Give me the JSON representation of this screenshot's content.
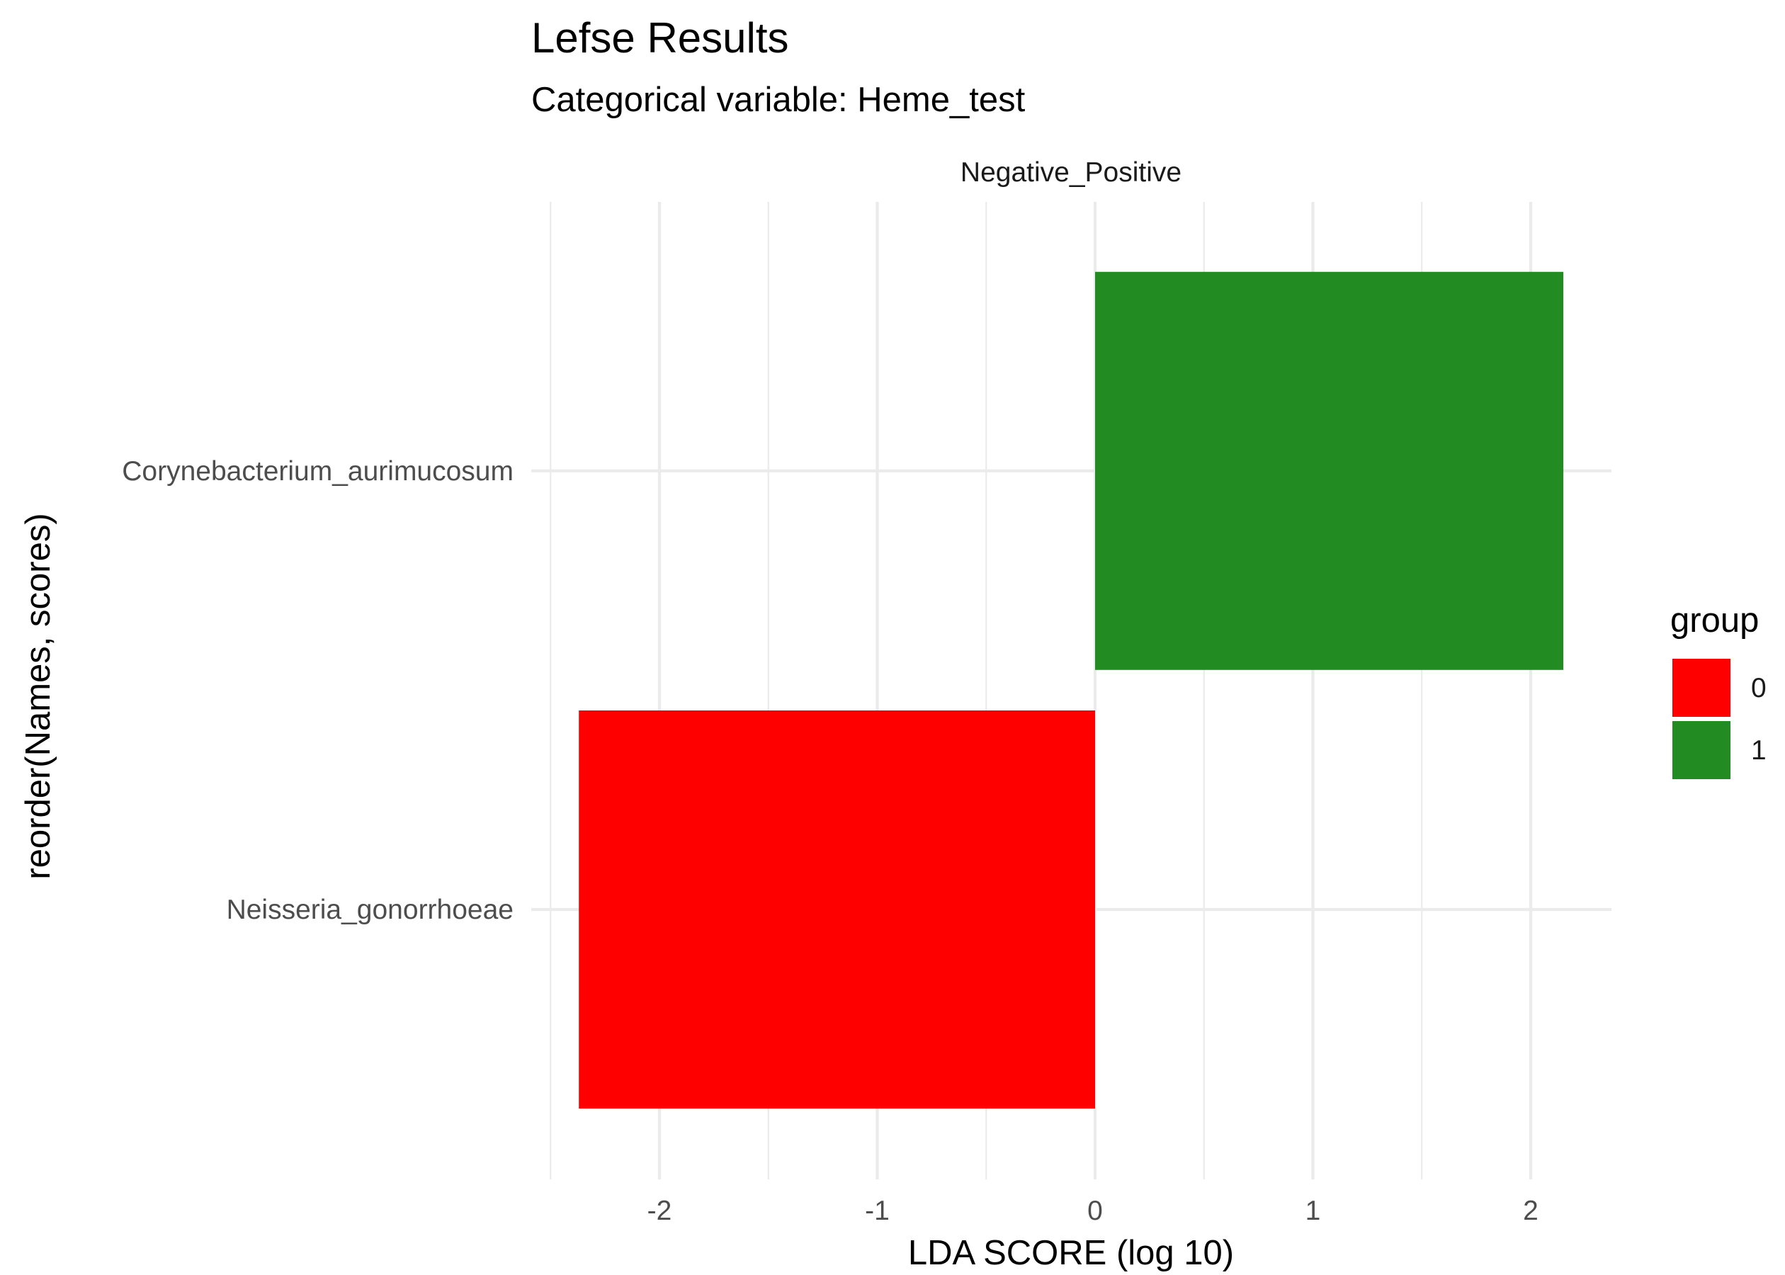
{
  "chart_data": {
    "type": "bar",
    "orientation": "horizontal",
    "title": "Lefse Results",
    "subtitle": "Categorical variable: Heme_test",
    "facet_label": "Negative_Positive",
    "xlabel": "LDA SCORE (log 10)",
    "ylabel": "reorder(Names, scores)",
    "xlim": [
      -2.5,
      2.37
    ],
    "x_ticks": [
      -2,
      -1,
      0,
      1,
      2
    ],
    "x_tick_labels": [
      "-2",
      "-1",
      "0",
      "1",
      "2"
    ],
    "grid": true,
    "categories": [
      "Corynebacterium_aurimucosum",
      "Neisseria_gonorrhoeae"
    ],
    "values": [
      2.15,
      -2.37
    ],
    "groups": [
      "1",
      "0"
    ],
    "legend": {
      "title": "group",
      "position": "right",
      "entries": [
        {
          "label": "0",
          "color": "#FF0000"
        },
        {
          "label": "1",
          "color": "#228B22"
        }
      ]
    }
  }
}
